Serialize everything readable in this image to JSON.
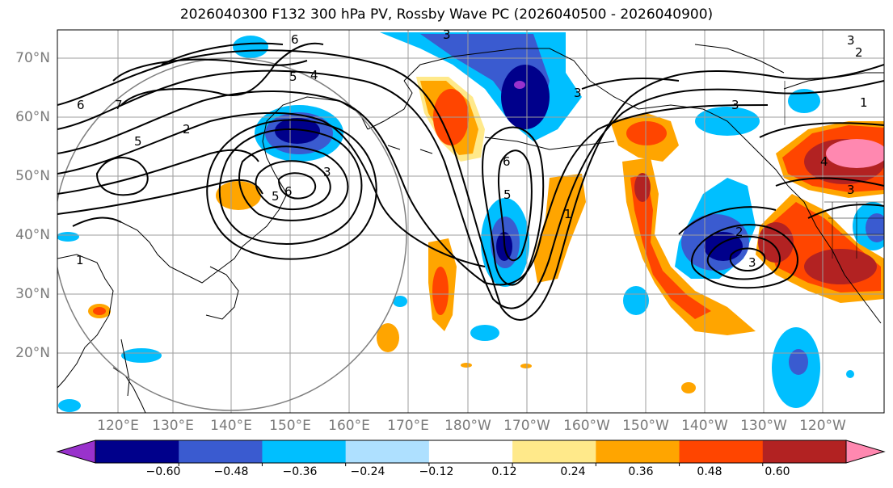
{
  "title": "2026040300 F132 300 hPa PV, Rossby Wave PC (2026040500 - 2026040900)",
  "lat_labels": [
    "70°N",
    "60°N",
    "50°N",
    "40°N",
    "30°N",
    "20°N"
  ],
  "lon_labels": [
    "120°E",
    "130°E",
    "140°E",
    "150°E",
    "160°E",
    "170°E",
    "180°W",
    "170°W",
    "160°W",
    "150°W",
    "140°W",
    "130°W",
    "120°W"
  ],
  "colorbar": {
    "colors": [
      "#9932cc",
      "#00008b",
      "#3a5bd0",
      "#00bfff",
      "#aee0ff",
      "#ffffff",
      "#ffe98a",
      "#ffa500",
      "#ff4500",
      "#b22222",
      "#ff88b0"
    ],
    "ticks": [
      "−0.60",
      "−0.48",
      "−0.36",
      "−0.24",
      "−0.12",
      "0.12",
      "0.24",
      "0.36",
      "0.48",
      "0.60"
    ]
  },
  "contour_labels": [
    "3",
    "6",
    "5",
    "4",
    "6",
    "7",
    "2",
    "5",
    "1",
    "5",
    "6",
    "3",
    "5",
    "6",
    "1",
    "3",
    "3",
    "2",
    "3",
    "4",
    "3",
    "1",
    "2",
    "3"
  ]
}
